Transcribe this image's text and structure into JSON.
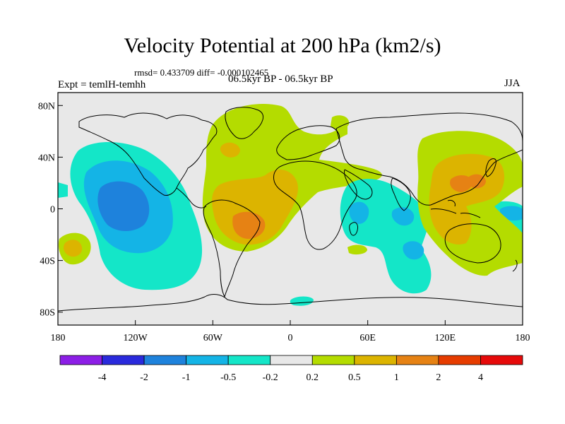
{
  "title": "Velocity Potential at 200 hPa (km2/s)",
  "stats": "rmsd= 0.433709 diff= -0.000102465",
  "left_label": "Expt = temlH-temhh",
  "center_label": "06.5kyr BP - 06.5kyr BP",
  "right_label": "JJA",
  "map": {
    "lon_range": [
      -180,
      180
    ],
    "lat_range": [
      -90,
      90
    ],
    "lon_ticks": [
      {
        "value": -180,
        "label": "180"
      },
      {
        "value": -120,
        "label": "120W"
      },
      {
        "value": -60,
        "label": "60W"
      },
      {
        "value": 0,
        "label": "0"
      },
      {
        "value": 60,
        "label": "60E"
      },
      {
        "value": 120,
        "label": "120E"
      },
      {
        "value": 180,
        "label": "180"
      }
    ],
    "lat_ticks": [
      {
        "value": 80,
        "label": "80N"
      },
      {
        "value": 40,
        "label": "40N"
      },
      {
        "value": 0,
        "label": "0"
      },
      {
        "value": -40,
        "label": "40S"
      },
      {
        "value": -80,
        "label": "80S"
      }
    ],
    "background_color": "#e8e8e8",
    "coastline_color": "#000000"
  },
  "colorbar": {
    "colors": [
      "#8c1ee6",
      "#2a2adc",
      "#1e82dc",
      "#14b4e6",
      "#14e6c8",
      "#e8e8e8",
      "#b4dc00",
      "#dcb400",
      "#e68214",
      "#e63c00",
      "#e60a0a"
    ],
    "labels": [
      "-4",
      "-2",
      "-1",
      "-0.5",
      "-0.2",
      "0.2",
      "0.5",
      "1",
      "2",
      "4"
    ]
  }
}
